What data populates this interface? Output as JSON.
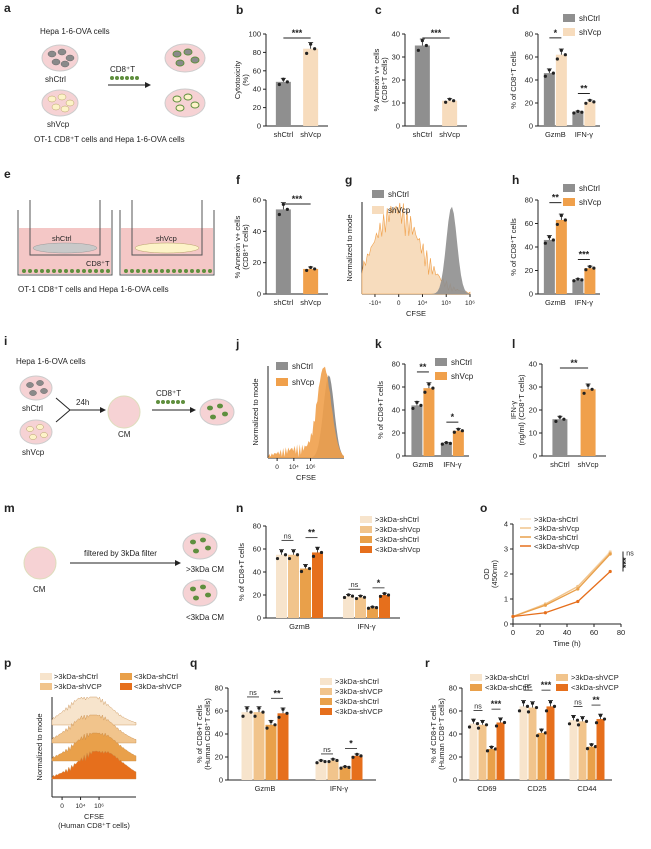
{
  "colors": {
    "ctrl_gray": "#8f8f8f",
    "shvcp_light": "#f7dcbd",
    "shvcp_orange": "#f0a04b",
    "c1": "#f7e4cc",
    "c2": "#f1c48c",
    "c3": "#e9a04a",
    "c4": "#e66f1c",
    "cell_green": "#5f8f3e",
    "cell_pink": "#f6d2d4",
    "well_pink": "#f4c7c6"
  },
  "panel_letters": [
    "a",
    "b",
    "c",
    "d",
    "e",
    "f",
    "g",
    "h",
    "i",
    "j",
    "k",
    "l",
    "m",
    "n",
    "o",
    "p",
    "q",
    "r"
  ],
  "schematic_a": {
    "title": "Hepa 1-6-OVA cells",
    "ctrl": "shCtrl",
    "vcp": "shVcp",
    "arrow": "CD8⁺T",
    "caption": "OT-1 CD8⁺T cells and Hepa 1-6-OVA cells"
  },
  "schematic_e": {
    "ctrl": "shCtrl",
    "vcp": "shVcp",
    "cd8": "CD8⁺T",
    "caption": "OT-1 CD8⁺T cells and Hepa 1-6-OVA cells"
  },
  "schematic_i": {
    "title": "Hepa 1-6-OVA cells",
    "ctrl": "shCtrl",
    "vcp": "shVcp",
    "time": "24h",
    "cm": "CM",
    "arrow": "CD8⁺T"
  },
  "schematic_m": {
    "cm": "CM",
    "filter": "filtered by 3kDa filter",
    "gt": ">3kDa CM",
    "lt": "<3kDa CM"
  },
  "chart_data": [
    {
      "panel": "b",
      "type": "bar",
      "categories": [
        "shCtrl",
        "shVcp"
      ],
      "values": [
        48,
        84
      ],
      "ylabel": "Cytotoxicity (%)",
      "yticks": [
        0,
        20,
        40,
        60,
        80,
        100
      ],
      "ylim": [
        0,
        100
      ],
      "sig": [
        {
          "text": "***",
          "between": [
            0,
            1
          ]
        }
      ]
    },
    {
      "panel": "c",
      "type": "bar",
      "categories": [
        "shCtrl",
        "shVcp"
      ],
      "values": [
        35,
        11
      ],
      "ylabel": "% Annexin v+ cells (CD8⁺T cells)",
      "yticks": [
        0,
        10,
        20,
        30,
        40
      ],
      "ylim": [
        0,
        40
      ],
      "sig": [
        {
          "text": "***",
          "between": [
            0,
            1
          ]
        }
      ]
    },
    {
      "panel": "d",
      "type": "bar",
      "categories": [
        "GzmB",
        "IFN-γ"
      ],
      "series": [
        {
          "name": "shCtrl",
          "values": [
            46,
            12
          ]
        },
        {
          "name": "shVcp",
          "values": [
            62,
            21
          ]
        }
      ],
      "ylabel": "% of CD8⁺T cells",
      "yticks": [
        0,
        20,
        40,
        60,
        80
      ],
      "ylim": [
        0,
        80
      ],
      "sig": [
        "*",
        "**"
      ]
    },
    {
      "panel": "f",
      "type": "bar",
      "categories": [
        "shCtrl",
        "shVcp"
      ],
      "values": [
        54,
        16
      ],
      "ylabel": "% Annexin v+ cells (CD8⁺T cells)",
      "yticks": [
        0,
        20,
        40,
        60
      ],
      "ylim": [
        0,
        60
      ],
      "sig": [
        {
          "text": "***",
          "between": [
            0,
            1
          ]
        }
      ]
    },
    {
      "panel": "g",
      "type": "histogram",
      "xlabel": "CFSE",
      "ylabel": "Normalized to mode",
      "series": [
        {
          "name": "shCtrl"
        },
        {
          "name": "shVcp"
        }
      ]
    },
    {
      "panel": "h",
      "type": "bar",
      "categories": [
        "GzmB",
        "IFN-γ"
      ],
      "series": [
        {
          "name": "shCtrl",
          "values": [
            46,
            12
          ]
        },
        {
          "name": "shVcp",
          "values": [
            63,
            22
          ]
        }
      ],
      "ylabel": "% of CD8⁺T cells",
      "yticks": [
        0,
        20,
        40,
        60,
        80
      ],
      "ylim": [
        0,
        80
      ],
      "sig": [
        "**",
        "***"
      ]
    },
    {
      "panel": "j",
      "type": "histogram",
      "xlabel": "CFSE",
      "ylabel": "Normalized to mode",
      "series": [
        {
          "name": "shCtrl"
        },
        {
          "name": "shVcp"
        }
      ]
    },
    {
      "panel": "k",
      "type": "bar",
      "categories": [
        "GzmB",
        "IFN-γ"
      ],
      "series": [
        {
          "name": "shCtrl",
          "values": [
            44,
            11
          ]
        },
        {
          "name": "shVcp",
          "values": [
            59,
            22
          ]
        }
      ],
      "ylabel": "% of CD8+T cells",
      "yticks": [
        0,
        20,
        40,
        60,
        80
      ],
      "ylim": [
        0,
        80
      ],
      "sig": [
        "**",
        "*"
      ]
    },
    {
      "panel": "l",
      "type": "bar",
      "categories": [
        "shCtrl",
        "shVcp"
      ],
      "values": [
        16,
        29
      ],
      "ylabel": "IFN-γ (ng/ml) (CD8⁺T cells)",
      "yticks": [
        0,
        10,
        20,
        30,
        40
      ],
      "ylim": [
        0,
        40
      ],
      "sig": [
        {
          "text": "**",
          "between": [
            0,
            1
          ]
        }
      ]
    },
    {
      "panel": "n",
      "type": "bar",
      "categories": [
        "GzmB",
        "IFN-γ"
      ],
      "series": [
        {
          "name": ">3kDa-shCtrl",
          "values": [
            55,
            19
          ]
        },
        {
          "name": ">3kDa-shVcp",
          "values": [
            55,
            18
          ]
        },
        {
          "name": "<3kDa-shCtrl",
          "values": [
            43,
            9
          ]
        },
        {
          "name": "<3kDa-shVcp",
          "values": [
            57,
            20
          ]
        }
      ],
      "ylabel": "% of CD8+T cells",
      "yticks": [
        0,
        20,
        40,
        60,
        80
      ],
      "ylim": [
        0,
        80
      ],
      "sig": [
        {
          "text": "ns",
          "between": [
            0,
            1
          ]
        },
        {
          "text": "**",
          "between": [
            2,
            3
          ]
        },
        {
          "text": "ns",
          "between": [
            0,
            1
          ]
        },
        {
          "text": "*",
          "between": [
            2,
            3
          ]
        }
      ]
    },
    {
      "panel": "o",
      "type": "line",
      "x": [
        0,
        24,
        48,
        72
      ],
      "series": [
        {
          "name": ">3kDa-shCtrl",
          "values": [
            0.3,
            0.8,
            1.5,
            2.9
          ]
        },
        {
          "name": ">3kDa-shVcp",
          "values": [
            0.3,
            0.8,
            1.5,
            2.85
          ]
        },
        {
          "name": "<3kDa-shCtrl",
          "values": [
            0.3,
            0.75,
            1.4,
            2.8
          ]
        },
        {
          "name": "<3kDa-shVcp",
          "values": [
            0.3,
            0.45,
            0.9,
            2.1
          ]
        }
      ],
      "xlabel": "Time (h)",
      "ylabel": "OD (450nm) (CD8⁺T cells)",
      "xticks": [
        0,
        20,
        40,
        60,
        80
      ],
      "yticks": [
        0,
        1,
        2,
        3,
        4
      ],
      "xlim": [
        0,
        80
      ],
      "ylim": [
        0,
        4
      ],
      "sig": [
        "ns",
        "***"
      ]
    },
    {
      "panel": "p",
      "type": "histogram",
      "xlabel": "CFSE",
      "xsub": "(Human CD8⁺T cells)",
      "ylabel": "Normalized to mode",
      "series": [
        {
          "name": ">3kDa-shCtrl"
        },
        {
          "name": ">3kDa-shVCP"
        },
        {
          "name": "<3kDa-shCtrl"
        },
        {
          "name": "<3kDa-shVCP"
        }
      ]
    },
    {
      "panel": "q",
      "type": "bar",
      "categories": [
        "GzmB",
        "IFN-γ"
      ],
      "series": [
        {
          "name": ">3kDa-shCtrl",
          "values": [
            59,
            16
          ]
        },
        {
          "name": ">3kDa-shVCP",
          "values": [
            59,
            17
          ]
        },
        {
          "name": "<3kDa-shCtrl",
          "values": [
            48,
            11
          ]
        },
        {
          "name": "<3kDa-shVCP",
          "values": [
            58,
            21
          ]
        }
      ],
      "ylabel": "% of CD8+T cells (Human CD8⁺T cells)",
      "yticks": [
        0,
        20,
        40,
        60,
        80
      ],
      "ylim": [
        0,
        80
      ],
      "sig": [
        {
          "text": "ns",
          "between": [
            0,
            1
          ]
        },
        {
          "text": "**",
          "between": [
            2,
            3
          ]
        },
        {
          "text": "ns",
          "between": [
            0,
            1
          ]
        },
        {
          "text": "*",
          "between": [
            2,
            3
          ]
        }
      ]
    },
    {
      "panel": "r",
      "type": "bar",
      "categories": [
        "CD69",
        "CD25",
        "CD44"
      ],
      "series": [
        {
          "name": ">3kDa-shCtrl",
          "values": [
            49,
            64,
            52
          ]
        },
        {
          "name": ">3kDa-shVCP",
          "values": [
            48,
            63,
            51
          ]
        },
        {
          "name": "<3kDa-shCtrl",
          "values": [
            27,
            41,
            29
          ]
        },
        {
          "name": "<3kDa-shVCP",
          "values": [
            50,
            64,
            53
          ]
        }
      ],
      "ylabel": "% of CD8+T cells (Human CD8⁺T cells)",
      "yticks": [
        0,
        20,
        40,
        60,
        80
      ],
      "ylim": [
        0,
        80
      ],
      "sig": [
        {
          "text": "ns",
          "between": [
            0,
            1
          ]
        },
        {
          "text": "***",
          "between": [
            2,
            3
          ]
        },
        {
          "text": "ns",
          "between": [
            0,
            1
          ]
        },
        {
          "text": "***",
          "between": [
            2,
            3
          ]
        },
        {
          "text": "ns",
          "between": [
            0,
            1
          ]
        },
        {
          "text": "**",
          "between": [
            2,
            3
          ]
        }
      ]
    }
  ]
}
